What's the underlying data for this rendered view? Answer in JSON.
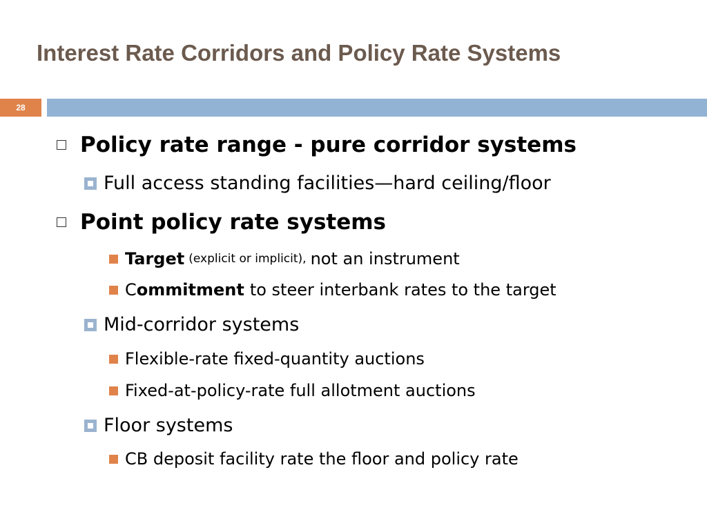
{
  "slide": {
    "title": "Interest Rate Corridors and Policy Rate Systems",
    "number": "28",
    "colors": {
      "title": "#6b5a4e",
      "accent_orange": "#e0834a",
      "accent_blue": "#93b3d4"
    }
  },
  "bullets": {
    "b1": {
      "text": "Policy rate range - pure corridor systems"
    },
    "b1_1": {
      "text": "Full access standing facilities—hard ceiling/floor"
    },
    "b2": {
      "text": "Point policy rate systems"
    },
    "b2_a": {
      "bold": "Target",
      "paren": "(explicit or implicit),",
      "rest": "not an instrument"
    },
    "b2_b": {
      "prefix": "C",
      "bold": "ommitment",
      "rest": "to steer interbank rates to the target"
    },
    "b2_1": {
      "text": "Mid-corridor systems"
    },
    "b2_1_a": {
      "text": "Flexible-rate fixed-quantity auctions"
    },
    "b2_1_b": {
      "text": "Fixed-at-policy-rate full allotment auctions"
    },
    "b2_2": {
      "text": "Floor systems"
    },
    "b2_2_a": {
      "text": "CB deposit facility rate the floor and policy rate"
    }
  }
}
